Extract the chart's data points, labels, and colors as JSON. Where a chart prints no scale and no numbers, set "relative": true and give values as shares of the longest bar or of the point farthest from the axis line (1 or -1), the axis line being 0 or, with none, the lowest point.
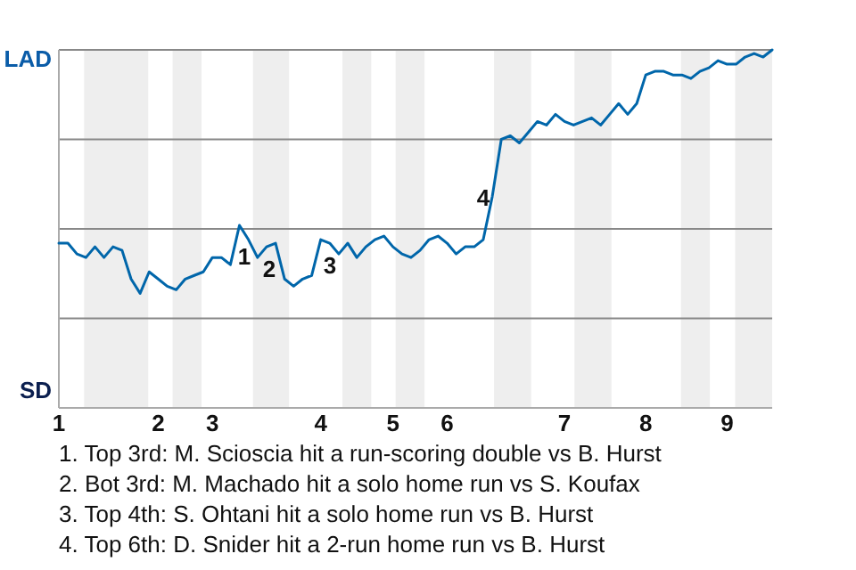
{
  "chart_data": {
    "type": "line",
    "relative": true,
    "categories": [
      "1",
      null,
      null,
      null,
      null,
      null,
      null,
      null,
      null,
      null,
      null,
      "2",
      null,
      null,
      null,
      null,
      null,
      "3",
      null,
      null,
      null,
      null,
      null,
      null,
      null,
      null,
      null,
      null,
      null,
      "4",
      null,
      null,
      null,
      null,
      null,
      null,
      null,
      "5",
      null,
      null,
      null,
      null,
      null,
      "6",
      null,
      null,
      null,
      null,
      null,
      null,
      null,
      null,
      null,
      null,
      null,
      null,
      "7",
      null,
      null,
      null,
      null,
      null,
      null,
      null,
      null,
      "8",
      null,
      null,
      null,
      null,
      null,
      null,
      null,
      null,
      "9",
      null,
      null,
      null,
      null,
      null
    ],
    "series": [
      {
        "color": "#0066aa",
        "values": [
          0.46,
          0.46,
          0.43,
          0.42,
          0.45,
          0.42,
          0.45,
          0.44,
          0.36,
          0.32,
          0.38,
          0.36,
          0.34,
          0.33,
          0.36,
          0.37,
          0.38,
          0.42,
          0.42,
          0.4,
          0.51,
          0.47,
          0.42,
          0.45,
          0.46,
          0.36,
          0.34,
          0.36,
          0.37,
          0.47,
          0.46,
          0.43,
          0.46,
          0.42,
          0.45,
          0.47,
          0.48,
          0.45,
          0.43,
          0.42,
          0.44,
          0.47,
          0.48,
          0.46,
          0.43,
          0.45,
          0.45,
          0.47,
          0.59,
          0.75,
          0.76,
          0.74,
          0.77,
          0.8,
          0.79,
          0.82,
          0.8,
          0.79,
          0.8,
          0.81,
          0.79,
          0.82,
          0.85,
          0.82,
          0.85,
          0.93,
          0.94,
          0.94,
          0.93,
          0.93,
          0.92,
          0.94,
          0.95,
          0.97,
          0.96,
          0.96,
          0.98,
          0.99,
          0.98,
          1
        ]
      }
    ],
    "grid": "y",
    "marker": "none",
    "line_style": "solid",
    "annotations": [
      "LAD",
      "SD",
      "1",
      "2",
      "3",
      "4",
      "1. Top 3rd: M. Scioscia hit a run-scoring double vs B. Hurst",
      "2. Bot 3rd: M. Machado hit a solo home run vs S. Koufax",
      "3. Top 4th: S. Ohtani hit a solo home run vs B. Hurst",
      "4. Top 6th: D. Snider hit a 2-run home run vs B. Hurst"
    ]
  }
}
